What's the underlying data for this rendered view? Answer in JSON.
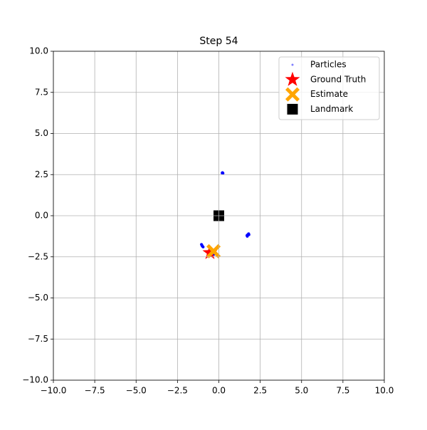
{
  "chart_data": {
    "type": "scatter",
    "title": "Step 54",
    "xlim": [
      -10,
      10
    ],
    "ylim": [
      -10,
      10
    ],
    "xticks": [
      {
        "value": -10,
        "label": "−10.0"
      },
      {
        "value": -7.5,
        "label": "−7.5"
      },
      {
        "value": -5,
        "label": "−5.0"
      },
      {
        "value": -2.5,
        "label": "−2.5"
      },
      {
        "value": 0,
        "label": "0.0"
      },
      {
        "value": 2.5,
        "label": "2.5"
      },
      {
        "value": 5,
        "label": "5.0"
      },
      {
        "value": 7.5,
        "label": "7.5"
      },
      {
        "value": 10,
        "label": "10.0"
      }
    ],
    "yticks": [
      {
        "value": -10,
        "label": "−10.0"
      },
      {
        "value": -7.5,
        "label": "−7.5"
      },
      {
        "value": -5,
        "label": "−5.0"
      },
      {
        "value": -2.5,
        "label": "−2.5"
      },
      {
        "value": 0,
        "label": "0.0"
      },
      {
        "value": 2.5,
        "label": "2.5"
      },
      {
        "value": 5,
        "label": "5.0"
      },
      {
        "value": 7.5,
        "label": "7.5"
      },
      {
        "value": 10,
        "label": "10.0"
      }
    ],
    "grid": true,
    "legend": "upper right",
    "series": [
      {
        "name": "Particles",
        "color": "#0000ff",
        "marker": "dot",
        "x": [
          0.2,
          0.25,
          0.22,
          1.7,
          1.8,
          1.75,
          1.72,
          1.82,
          -1.05,
          -1.0,
          -0.95,
          -1.02,
          -0.6,
          -0.4,
          -0.5,
          -0.3
        ],
        "y": [
          2.6,
          2.58,
          2.62,
          -1.2,
          -1.1,
          -1.15,
          -1.25,
          -1.15,
          -1.75,
          -1.85,
          -1.9,
          -1.8,
          -2.3,
          -2.4,
          -2.2,
          -2.35
        ]
      },
      {
        "name": "Ground Truth",
        "color": "#ff0000",
        "marker": "star",
        "x": [
          -0.54
        ],
        "y": [
          -2.25
        ]
      },
      {
        "name": "Estimate",
        "color": "#ffa500",
        "marker": "x",
        "x": [
          -0.32
        ],
        "y": [
          -2.16
        ]
      },
      {
        "name": "Landmark",
        "color": "#000000",
        "marker": "square",
        "x": [
          0
        ],
        "y": [
          0
        ]
      }
    ]
  }
}
